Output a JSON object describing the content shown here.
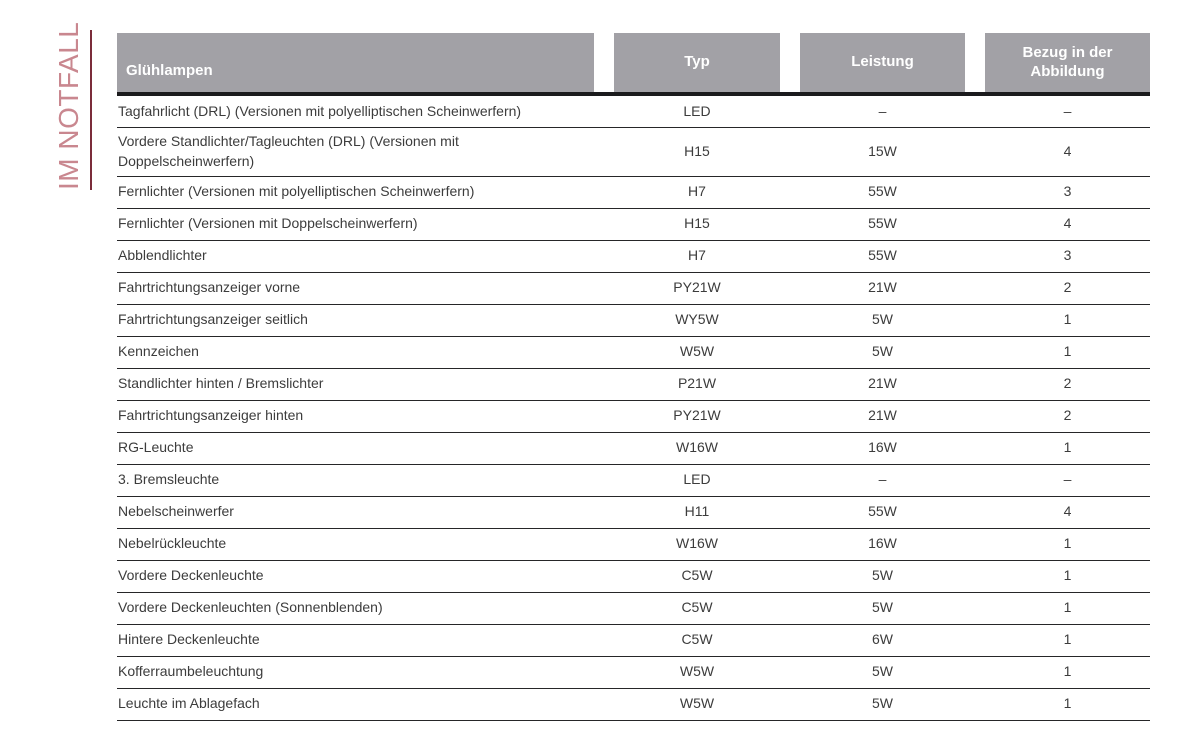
{
  "sidebar": {
    "label": "IM NOTFALL"
  },
  "table": {
    "headers": [
      "Glühlampen",
      "Typ",
      "Leistung",
      "Bezug in der Abbildung"
    ],
    "rows": [
      {
        "name": "Tagfahrlicht (DRL) (Versionen mit polyelliptischen Scheinwerfern)",
        "typ": "LED",
        "leistung": "–",
        "bezug": "–"
      },
      {
        "name": "Vordere Standlichter/Tagleuchten (DRL) (Versionen mit Doppelscheinwerfern)",
        "typ": "H15",
        "leistung": "15W",
        "bezug": "4"
      },
      {
        "name": "Fernlichter (Versionen mit polyelliptischen Scheinwerfern)",
        "typ": "H7",
        "leistung": "55W",
        "bezug": "3"
      },
      {
        "name": "Fernlichter (Versionen mit Doppelscheinwerfern)",
        "typ": "H15",
        "leistung": "55W",
        "bezug": "4"
      },
      {
        "name": "Abblendlichter",
        "typ": "H7",
        "leistung": "55W",
        "bezug": "3"
      },
      {
        "name": "Fahrtrichtungsanzeiger vorne",
        "typ": "PY21W",
        "leistung": "21W",
        "bezug": "2"
      },
      {
        "name": "Fahrtrichtungsanzeiger seitlich",
        "typ": "WY5W",
        "leistung": "5W",
        "bezug": "1"
      },
      {
        "name": "Kennzeichen",
        "typ": "W5W",
        "leistung": "5W",
        "bezug": "1"
      },
      {
        "name": "Standlichter hinten / Bremslichter",
        "typ": "P21W",
        "leistung": "21W",
        "bezug": "2"
      },
      {
        "name": "Fahrtrichtungsanzeiger hinten",
        "typ": "PY21W",
        "leistung": "21W",
        "bezug": "2"
      },
      {
        "name": "RG-Leuchte",
        "typ": "W16W",
        "leistung": "16W",
        "bezug": "1"
      },
      {
        "name": "3. Bremsleuchte",
        "typ": "LED",
        "leistung": "–",
        "bezug": "–"
      },
      {
        "name": "Nebelscheinwerfer",
        "typ": "H11",
        "leistung": "55W",
        "bezug": "4"
      },
      {
        "name": "Nebelrückleuchte",
        "typ": "W16W",
        "leistung": "16W",
        "bezug": "1"
      },
      {
        "name": "Vordere Deckenleuchte",
        "typ": "C5W",
        "leistung": "5W",
        "bezug": "1"
      },
      {
        "name": "Vordere Deckenleuchten (Sonnenblenden)",
        "typ": "C5W",
        "leistung": "5W",
        "bezug": "1"
      },
      {
        "name": "Hintere Deckenleuchte",
        "typ": "C5W",
        "leistung": "6W",
        "bezug": "1"
      },
      {
        "name": "Kofferraumbeleuchtung",
        "typ": "W5W",
        "leistung": "5W",
        "bezug": "1"
      },
      {
        "name": "Leuchte im Ablagefach",
        "typ": "W5W",
        "leistung": "5W",
        "bezug": "1"
      }
    ]
  },
  "colors": {
    "header_background": "#a2a1a6",
    "header_text": "#ffffff",
    "header_rule": "#1b1b1d",
    "row_rule": "#262628",
    "body_text": "#3c3c3c",
    "side_tab_text": "#c9878f",
    "side_tab_line": "#7b2c3a"
  }
}
